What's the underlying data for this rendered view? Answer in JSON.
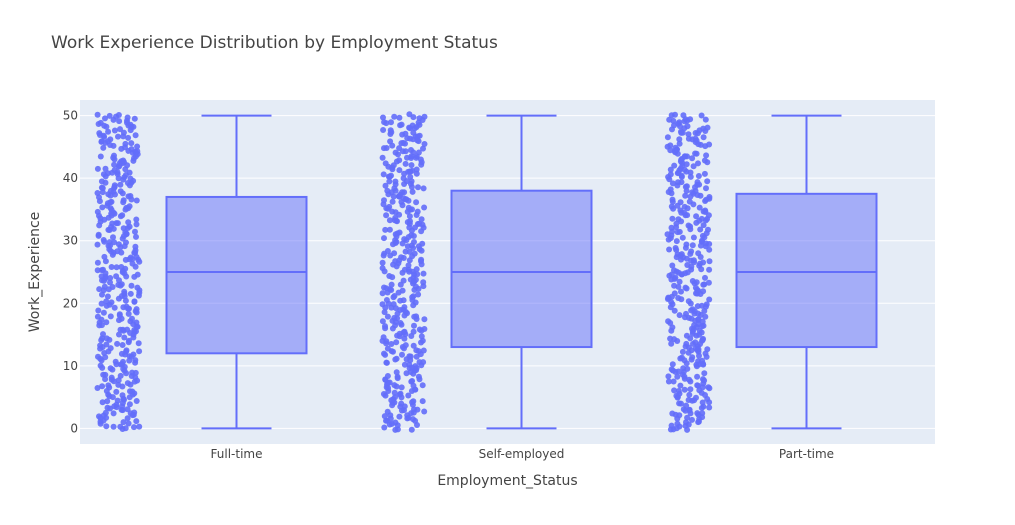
{
  "chart_data": {
    "type": "box",
    "title": "Work Experience Distribution by Employment Status",
    "xlabel": "Employment_Status",
    "ylabel": "Work_Experience",
    "ylim": [
      -2.5,
      52.5
    ],
    "yticks": [
      0,
      10,
      20,
      30,
      40,
      50
    ],
    "categories": [
      "Full-time",
      "Self-employed",
      "Part-time"
    ],
    "boxes": [
      {
        "category": "Full-time",
        "min": 0,
        "q1": 12,
        "median": 25,
        "q3": 37,
        "max": 50
      },
      {
        "category": "Self-employed",
        "min": 0,
        "q1": 13,
        "median": 25,
        "q3": 38,
        "max": 50
      },
      {
        "category": "Part-time",
        "min": 0,
        "q1": 13,
        "median": 25,
        "q3": 37.5,
        "max": 50
      }
    ],
    "points": "all",
    "grid": true,
    "colors": {
      "box_line": "#636efa",
      "box_fill": "rgba(99,110,250,0.5)",
      "points": "#636efa",
      "plot_bg": "#e5ecf6",
      "grid": "#ffffff",
      "text": "#444444"
    }
  }
}
